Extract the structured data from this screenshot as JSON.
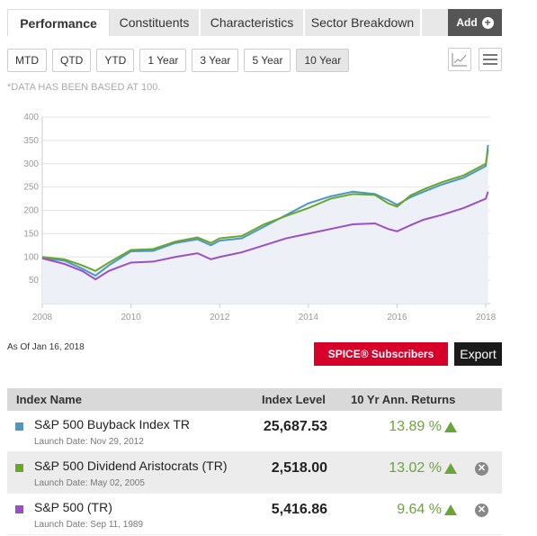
{
  "tabs": [
    {
      "label": "Performance"
    },
    {
      "label": "Constituents"
    },
    {
      "label": "Characteristics"
    },
    {
      "label": "Sector Breakdown"
    }
  ],
  "add_label": "Add",
  "ranges": [
    {
      "label": "MTD"
    },
    {
      "label": "QTD"
    },
    {
      "label": "YTD"
    },
    {
      "label": "1 Year"
    },
    {
      "label": "3 Year"
    },
    {
      "label": "5 Year"
    },
    {
      "label": "10 Year"
    }
  ],
  "selected_range": "10 Year",
  "icons": {
    "line_chart": "line-chart-icon",
    "menu": "hamburger-menu-icon",
    "add": "plus-circle-icon",
    "remove": "close-circle-icon",
    "up": "triangle-up-icon"
  },
  "note": "*DATA HAS BEEN BASED AT 100.",
  "as_of_label": "As Of",
  "as_of_date": "Jan 16, 2018",
  "spice_label": "SPICE® Subscribers",
  "export_label": "Export",
  "table": {
    "headers": {
      "name": "Index Name",
      "level": "Index Level",
      "returns": "10 Yr Ann. Returns"
    },
    "launch_prefix": "Launch Date:",
    "rows": [
      {
        "name": "S&P 500 Buyback Index TR",
        "launch_date": "Nov 29, 2012",
        "level": "25,687.53",
        "returns": "13.89 %",
        "color": "#4a97c9"
      },
      {
        "name": "S&P 500 Dividend Aristocrats (TR)",
        "launch_date": "May 02, 2005",
        "level": "2,518.00",
        "returns": "13.02 %",
        "color": "#6aa629"
      },
      {
        "name": "S&P 500 (TR)",
        "launch_date": "Sep 11, 1989",
        "level": "5,416.86",
        "returns": "9.64 %",
        "color": "#9b4fc4"
      }
    ]
  },
  "chart_data": {
    "type": "line",
    "ylim": [
      0,
      400
    ],
    "xlim": [
      2008,
      2018.1
    ],
    "y_ticks": [
      50,
      100,
      150,
      200,
      250,
      300,
      350,
      400
    ],
    "x_ticks": [
      "2008",
      "2010",
      "2012",
      "2014",
      "2016",
      "2018"
    ],
    "grid": true,
    "series": [
      {
        "name": "S&P 500 Buyback Index TR",
        "color": "#4a97c9",
        "x": [
          2008.0,
          2008.5,
          2008.9,
          2009.2,
          2009.5,
          2010.0,
          2010.5,
          2011.0,
          2011.5,
          2011.8,
          2012.0,
          2012.5,
          2013.0,
          2013.5,
          2014.0,
          2014.5,
          2015.0,
          2015.5,
          2015.8,
          2016.0,
          2016.3,
          2016.6,
          2017.0,
          2017.5,
          2018.0,
          2018.05
        ],
        "values": [
          98,
          92,
          75,
          60,
          82,
          112,
          113,
          130,
          138,
          125,
          135,
          140,
          165,
          190,
          215,
          230,
          240,
          235,
          222,
          212,
          228,
          240,
          255,
          270,
          295,
          340
        ]
      },
      {
        "name": "S&P 500 Dividend Aristocrats (TR)",
        "color": "#6aa629",
        "x": [
          2008.0,
          2008.5,
          2008.9,
          2009.2,
          2009.5,
          2010.0,
          2010.5,
          2011.0,
          2011.5,
          2011.8,
          2012.0,
          2012.5,
          2013.0,
          2013.5,
          2014.0,
          2014.5,
          2015.0,
          2015.5,
          2015.8,
          2016.0,
          2016.3,
          2016.6,
          2017.0,
          2017.5,
          2018.0,
          2018.05
        ],
        "values": [
          100,
          95,
          82,
          70,
          88,
          115,
          117,
          133,
          142,
          130,
          140,
          145,
          170,
          188,
          205,
          225,
          235,
          233,
          215,
          208,
          232,
          245,
          260,
          275,
          300,
          330
        ]
      },
      {
        "name": "S&P 500 (TR)",
        "color": "#9b4fc4",
        "x": [
          2008.0,
          2008.5,
          2008.9,
          2009.2,
          2009.5,
          2010.0,
          2010.5,
          2011.0,
          2011.5,
          2011.8,
          2012.0,
          2012.5,
          2013.0,
          2013.5,
          2014.0,
          2014.5,
          2015.0,
          2015.5,
          2015.8,
          2016.0,
          2016.3,
          2016.6,
          2017.0,
          2017.5,
          2018.0,
          2018.05
        ],
        "values": [
          97,
          85,
          70,
          52,
          70,
          88,
          90,
          100,
          108,
          95,
          100,
          110,
          125,
          140,
          150,
          160,
          170,
          172,
          160,
          155,
          168,
          180,
          190,
          205,
          225,
          240
        ]
      }
    ]
  }
}
